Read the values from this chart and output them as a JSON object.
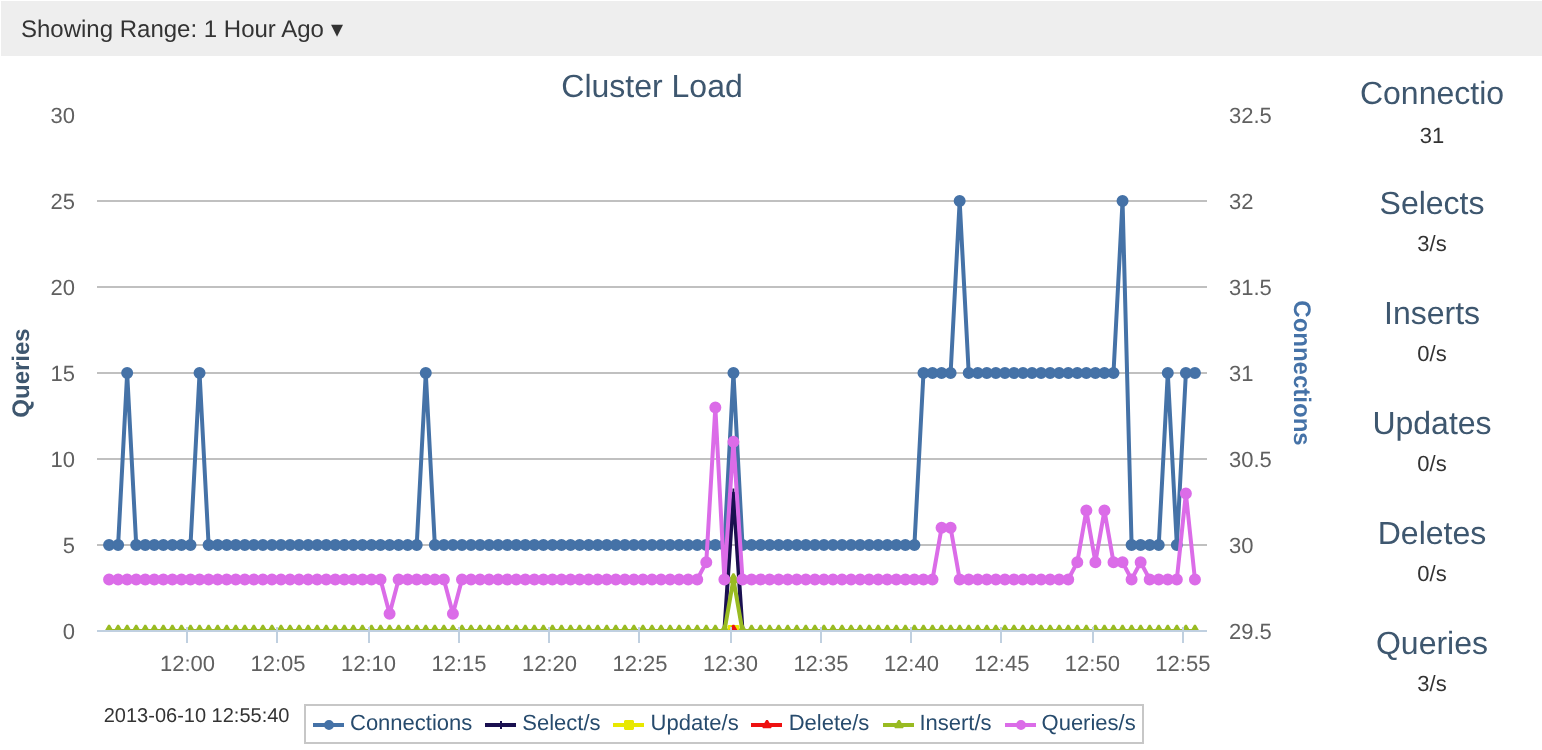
{
  "chart_data": [
    {
      "type": "line",
      "title": "Cluster Load",
      "ylabel": "Queries",
      "y2label": "Connections",
      "annotations": [
        "Showing Range: 1 Hour Ago ▾",
        "2013-06-10 12:55:40"
      ],
      "xlim": [
        "2013-06-10T11:55",
        "2013-06-10T12:56:20"
      ],
      "xticks": [
        {
          "value": "2013-06-10T12:00",
          "label": "12:00"
        },
        {
          "value": "2013-06-10T12:05",
          "label": "12:05"
        },
        {
          "value": "2013-06-10T12:10",
          "label": "12:10"
        },
        {
          "value": "2013-06-10T12:15",
          "label": "12:15"
        },
        {
          "value": "2013-06-10T12:20",
          "label": "12:20"
        },
        {
          "value": "2013-06-10T12:25",
          "label": "12:25"
        },
        {
          "value": "2013-06-10T12:30",
          "label": "12:30"
        },
        {
          "value": "2013-06-10T12:35",
          "label": "12:35"
        },
        {
          "value": "2013-06-10T12:40",
          "label": "12:40"
        },
        {
          "value": "2013-06-10T12:45",
          "label": "12:45"
        },
        {
          "value": "2013-06-10T12:50",
          "label": "12:50"
        },
        {
          "value": "2013-06-10T12:55",
          "label": "12:55"
        }
      ],
      "ylim": [
        0,
        30
      ],
      "yticks": [
        0,
        5,
        10,
        15,
        20,
        25,
        30
      ],
      "y2lim": [
        29.5,
        32.5
      ],
      "y2ticks": [
        29.5,
        30,
        30.5,
        31,
        31.5,
        32,
        32.5
      ],
      "grid": "y",
      "legend": "bottom",
      "line_style": "solid",
      "x": [
        "2013-06-10T11:55:40",
        "2013-06-10T11:56:10",
        "2013-06-10T11:56:40",
        "2013-06-10T11:57:10",
        "2013-06-10T11:57:40",
        "2013-06-10T11:58:10",
        "2013-06-10T11:58:40",
        "2013-06-10T11:59:10",
        "2013-06-10T11:59:40",
        "2013-06-10T12:00:10",
        "2013-06-10T12:00:40",
        "2013-06-10T12:01:10",
        "2013-06-10T12:01:40",
        "2013-06-10T12:02:10",
        "2013-06-10T12:02:40",
        "2013-06-10T12:03:10",
        "2013-06-10T12:03:40",
        "2013-06-10T12:04:10",
        "2013-06-10T12:04:40",
        "2013-06-10T12:05:10",
        "2013-06-10T12:05:40",
        "2013-06-10T12:06:10",
        "2013-06-10T12:06:40",
        "2013-06-10T12:07:10",
        "2013-06-10T12:07:40",
        "2013-06-10T12:08:10",
        "2013-06-10T12:08:40",
        "2013-06-10T12:09:10",
        "2013-06-10T12:09:40",
        "2013-06-10T12:10:10",
        "2013-06-10T12:10:40",
        "2013-06-10T12:11:10",
        "2013-06-10T12:11:40",
        "2013-06-10T12:12:10",
        "2013-06-10T12:12:40",
        "2013-06-10T12:13:10",
        "2013-06-10T12:13:40",
        "2013-06-10T12:14:10",
        "2013-06-10T12:14:40",
        "2013-06-10T12:15:10",
        "2013-06-10T12:15:40",
        "2013-06-10T12:16:10",
        "2013-06-10T12:16:40",
        "2013-06-10T12:17:10",
        "2013-06-10T12:17:40",
        "2013-06-10T12:18:10",
        "2013-06-10T12:18:40",
        "2013-06-10T12:19:10",
        "2013-06-10T12:19:40",
        "2013-06-10T12:20:10",
        "2013-06-10T12:20:40",
        "2013-06-10T12:21:10",
        "2013-06-10T12:21:40",
        "2013-06-10T12:22:10",
        "2013-06-10T12:22:40",
        "2013-06-10T12:23:10",
        "2013-06-10T12:23:40",
        "2013-06-10T12:24:10",
        "2013-06-10T12:24:40",
        "2013-06-10T12:25:10",
        "2013-06-10T12:25:40",
        "2013-06-10T12:26:10",
        "2013-06-10T12:26:40",
        "2013-06-10T12:27:10",
        "2013-06-10T12:27:40",
        "2013-06-10T12:28:10",
        "2013-06-10T12:28:40",
        "2013-06-10T12:29:10",
        "2013-06-10T12:29:40",
        "2013-06-10T12:30:10",
        "2013-06-10T12:30:40",
        "2013-06-10T12:31:10",
        "2013-06-10T12:31:40",
        "2013-06-10T12:32:10",
        "2013-06-10T12:32:40",
        "2013-06-10T12:33:10",
        "2013-06-10T12:33:40",
        "2013-06-10T12:34:10",
        "2013-06-10T12:34:40",
        "2013-06-10T12:35:10",
        "2013-06-10T12:35:40",
        "2013-06-10T12:36:10",
        "2013-06-10T12:36:40",
        "2013-06-10T12:37:10",
        "2013-06-10T12:37:40",
        "2013-06-10T12:38:10",
        "2013-06-10T12:38:40",
        "2013-06-10T12:39:10",
        "2013-06-10T12:39:40",
        "2013-06-10T12:40:10",
        "2013-06-10T12:40:40",
        "2013-06-10T12:41:10",
        "2013-06-10T12:41:40",
        "2013-06-10T12:42:10",
        "2013-06-10T12:42:40",
        "2013-06-10T12:43:10",
        "2013-06-10T12:43:40",
        "2013-06-10T12:44:10",
        "2013-06-10T12:44:40",
        "2013-06-10T12:45:10",
        "2013-06-10T12:45:40",
        "2013-06-10T12:46:10",
        "2013-06-10T12:46:40",
        "2013-06-10T12:47:10",
        "2013-06-10T12:47:40",
        "2013-06-10T12:48:10",
        "2013-06-10T12:48:40",
        "2013-06-10T12:49:10",
        "2013-06-10T12:49:40",
        "2013-06-10T12:50:10",
        "2013-06-10T12:50:40",
        "2013-06-10T12:51:10",
        "2013-06-10T12:51:40",
        "2013-06-10T12:52:10",
        "2013-06-10T12:52:40",
        "2013-06-10T12:53:10",
        "2013-06-10T12:53:40",
        "2013-06-10T12:54:10",
        "2013-06-10T12:54:40",
        "2013-06-10T12:55:10",
        "2013-06-10T12:55:40"
      ],
      "series": [
        {
          "name": "Connections",
          "color": "#4572a7",
          "axis": "y2",
          "marker": "circle",
          "values": [
            30,
            30,
            31,
            30,
            30,
            30,
            30,
            30,
            30,
            30,
            31,
            30,
            30,
            30,
            30,
            30,
            30,
            30,
            30,
            30,
            30,
            30,
            30,
            30,
            30,
            30,
            30,
            30,
            30,
            30,
            30,
            30,
            30,
            30,
            30,
            31,
            30,
            30,
            30,
            30,
            30,
            30,
            30,
            30,
            30,
            30,
            30,
            30,
            30,
            30,
            30,
            30,
            30,
            30,
            30,
            30,
            30,
            30,
            30,
            30,
            30,
            30,
            30,
            30,
            30,
            30,
            30,
            30,
            30,
            31,
            30,
            30,
            30,
            30,
            30,
            30,
            30,
            30,
            30,
            30,
            30,
            30,
            30,
            30,
            30,
            30,
            30,
            30,
            30,
            30,
            31,
            31,
            31,
            31,
            32,
            31,
            31,
            31,
            31,
            31,
            31,
            31,
            31,
            31,
            31,
            31,
            31,
            31,
            31,
            31,
            31,
            31,
            32,
            30,
            30,
            30,
            30,
            31,
            30,
            31,
            31
          ]
        },
        {
          "name": "Select/s",
          "color": "#1a1050",
          "marker": "cross",
          "values": [
            null,
            null,
            null,
            null,
            null,
            null,
            null,
            null,
            null,
            null,
            null,
            null,
            null,
            null,
            null,
            null,
            null,
            null,
            null,
            null,
            null,
            null,
            null,
            null,
            null,
            null,
            null,
            null,
            null,
            null,
            null,
            null,
            null,
            null,
            null,
            null,
            null,
            null,
            null,
            null,
            null,
            null,
            null,
            null,
            null,
            null,
            null,
            null,
            null,
            null,
            null,
            null,
            null,
            null,
            null,
            null,
            null,
            null,
            null,
            null,
            null,
            null,
            null,
            null,
            null,
            null,
            null,
            null,
            0,
            8,
            0,
            null,
            null,
            null,
            null,
            null,
            null,
            null,
            null,
            null,
            null,
            null,
            null,
            null,
            null,
            null,
            null,
            null,
            null,
            null,
            null,
            null,
            null,
            null,
            null,
            null,
            null,
            null,
            null,
            null,
            null,
            null,
            null,
            null,
            null,
            null,
            null,
            null,
            null,
            null,
            null,
            null,
            null,
            null,
            null,
            null,
            null,
            null,
            null,
            null,
            null
          ]
        },
        {
          "name": "Update/s",
          "color": "#e8e800",
          "marker": "square",
          "values": [
            null,
            null,
            null,
            null,
            null,
            null,
            null,
            null,
            null,
            null,
            null,
            null,
            null,
            null,
            null,
            null,
            null,
            null,
            null,
            null,
            null,
            null,
            null,
            null,
            null,
            null,
            null,
            null,
            null,
            null,
            null,
            null,
            null,
            null,
            null,
            null,
            null,
            null,
            null,
            null,
            null,
            null,
            null,
            null,
            null,
            null,
            null,
            null,
            null,
            null,
            null,
            null,
            null,
            null,
            null,
            null,
            null,
            null,
            null,
            null,
            null,
            null,
            null,
            null,
            null,
            null,
            null,
            null,
            null,
            0,
            null,
            null,
            null,
            null,
            null,
            null,
            null,
            null,
            null,
            null,
            null,
            null,
            null,
            null,
            null,
            null,
            null,
            null,
            null,
            null,
            null,
            null,
            null,
            null,
            null,
            null,
            null,
            null,
            null,
            null,
            null,
            null,
            null,
            null,
            null,
            null,
            null,
            null,
            null,
            null,
            null,
            null,
            null,
            null,
            null,
            null,
            null,
            null,
            null,
            null,
            null
          ]
        },
        {
          "name": "Delete/s",
          "color": "#ee1111",
          "marker": "triangle",
          "values": [
            null,
            null,
            null,
            null,
            null,
            null,
            null,
            null,
            null,
            null,
            null,
            null,
            null,
            null,
            null,
            null,
            null,
            null,
            null,
            null,
            null,
            null,
            null,
            null,
            null,
            null,
            null,
            null,
            null,
            null,
            null,
            null,
            null,
            null,
            null,
            null,
            null,
            null,
            null,
            null,
            null,
            null,
            null,
            null,
            null,
            null,
            null,
            null,
            null,
            null,
            null,
            null,
            null,
            null,
            null,
            null,
            null,
            null,
            null,
            null,
            null,
            null,
            null,
            null,
            null,
            null,
            null,
            null,
            null,
            0,
            null,
            null,
            null,
            null,
            null,
            null,
            null,
            null,
            null,
            null,
            null,
            null,
            null,
            null,
            null,
            null,
            null,
            null,
            null,
            null,
            null,
            null,
            null,
            null,
            null,
            null,
            null,
            null,
            null,
            null,
            null,
            null,
            null,
            null,
            null,
            null,
            null,
            null,
            null,
            null,
            null,
            null,
            null,
            null,
            null,
            null,
            null,
            null,
            null,
            null,
            null
          ]
        },
        {
          "name": "Insert/s",
          "color": "#99bb22",
          "marker": "triangle",
          "values": [
            0,
            0,
            0,
            0,
            0,
            0,
            0,
            0,
            0,
            0,
            0,
            0,
            0,
            0,
            0,
            0,
            0,
            0,
            0,
            0,
            0,
            0,
            0,
            0,
            0,
            0,
            0,
            0,
            0,
            0,
            0,
            0,
            0,
            0,
            0,
            0,
            0,
            0,
            0,
            0,
            0,
            0,
            0,
            0,
            0,
            0,
            0,
            0,
            0,
            0,
            0,
            0,
            0,
            0,
            0,
            0,
            0,
            0,
            0,
            0,
            0,
            0,
            0,
            0,
            0,
            0,
            0,
            0,
            0,
            3,
            0,
            0,
            0,
            0,
            0,
            0,
            0,
            0,
            0,
            0,
            0,
            0,
            0,
            0,
            0,
            0,
            0,
            0,
            0,
            0,
            0,
            0,
            0,
            0,
            0,
            0,
            0,
            0,
            0,
            0,
            0,
            0,
            0,
            0,
            0,
            0,
            0,
            0,
            0,
            0,
            0,
            0,
            0,
            0,
            0,
            0,
            0,
            0,
            0,
            0,
            0
          ]
        },
        {
          "name": "Queries/s",
          "color": "#db6ce8",
          "marker": "circle",
          "values": [
            3,
            3,
            3,
            3,
            3,
            3,
            3,
            3,
            3,
            3,
            3,
            3,
            3,
            3,
            3,
            3,
            3,
            3,
            3,
            3,
            3,
            3,
            3,
            3,
            3,
            3,
            3,
            3,
            3,
            3,
            3,
            1,
            3,
            3,
            3,
            3,
            3,
            3,
            1,
            3,
            3,
            3,
            3,
            3,
            3,
            3,
            3,
            3,
            3,
            3,
            3,
            3,
            3,
            3,
            3,
            3,
            3,
            3,
            3,
            3,
            3,
            3,
            3,
            3,
            3,
            3,
            4,
            13,
            3,
            11,
            3,
            3,
            3,
            3,
            3,
            3,
            3,
            3,
            3,
            3,
            3,
            3,
            3,
            3,
            3,
            3,
            3,
            3,
            3,
            3,
            3,
            3,
            6,
            6,
            3,
            3,
            3,
            3,
            3,
            3,
            3,
            3,
            3,
            3,
            3,
            3,
            3,
            4,
            7,
            4,
            7,
            4,
            4,
            3,
            4,
            3,
            3,
            3,
            3,
            8,
            3
          ]
        }
      ]
    },
    {
      "type": "other",
      "annotations": [
        "Connectio",
        "31",
        "Selects",
        "3/s",
        "Inserts",
        "0/s",
        "Updates",
        "0/s",
        "Deletes",
        "0/s",
        "Queries",
        "3/s"
      ]
    }
  ]
}
